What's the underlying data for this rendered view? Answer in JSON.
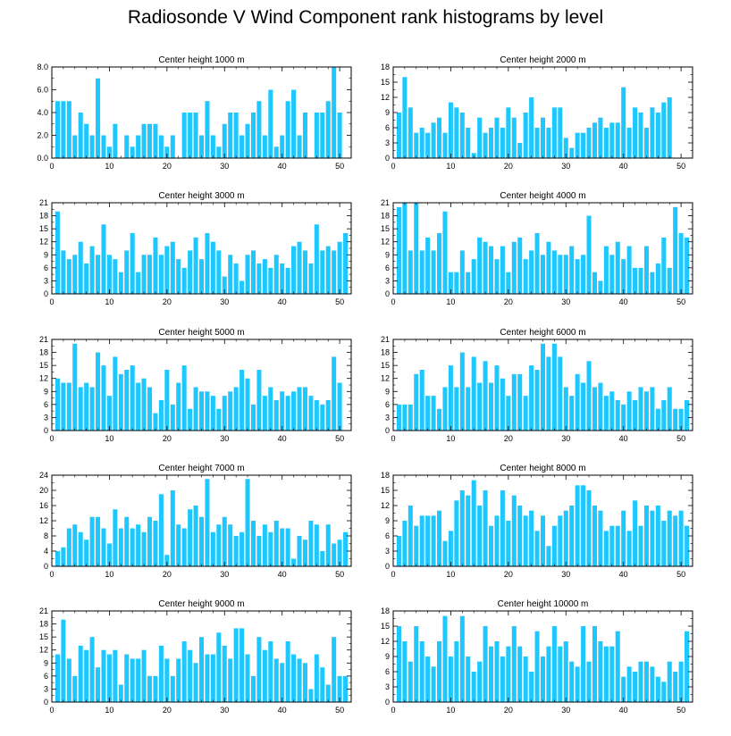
{
  "title": "Radiosonde V Wind Component rank histograms by level",
  "bar_color": "#1ec8ff",
  "chart_data": [
    {
      "type": "bar",
      "title": "Center height 1000 m",
      "ylim": [
        0,
        8
      ],
      "yticks": [
        0,
        2,
        4,
        6,
        8
      ],
      "ytick_labels": [
        "0.0",
        "2.0",
        "4.0",
        "6.0",
        "8.0"
      ],
      "xlim": [
        0,
        52
      ],
      "xticks": [
        0,
        10,
        20,
        30,
        40,
        50
      ],
      "xtick_labels": [
        "0",
        "10",
        "20",
        "30",
        "40",
        "50"
      ],
      "values": [
        5,
        5,
        5,
        2,
        4,
        3,
        2,
        7,
        2,
        1,
        3,
        0,
        2,
        1,
        2,
        3,
        3,
        3,
        2,
        1,
        2,
        0,
        4,
        4,
        4,
        2,
        5,
        2,
        1,
        3,
        4,
        4,
        2,
        3,
        4,
        5,
        2,
        6,
        1,
        2,
        5,
        6,
        2,
        4,
        0,
        4,
        4,
        5,
        8,
        4
      ]
    },
    {
      "type": "bar",
      "title": "Center height 2000 m",
      "ylim": [
        0,
        18
      ],
      "yticks": [
        0,
        3,
        6,
        9,
        12,
        15,
        18
      ],
      "ytick_labels": [
        "0",
        "3",
        "6",
        "9",
        "12",
        "15",
        "18"
      ],
      "xlim": [
        0,
        52
      ],
      "xticks": [
        0,
        10,
        20,
        30,
        40,
        50
      ],
      "xtick_labels": [
        "0",
        "10",
        "20",
        "30",
        "40",
        "50"
      ],
      "values": [
        9,
        16,
        10,
        5,
        6,
        5,
        7,
        8,
        5,
        11,
        10,
        9,
        6,
        1,
        8,
        5,
        6,
        8,
        6,
        10,
        8,
        3,
        9,
        12,
        6,
        8,
        6,
        10,
        10,
        4,
        2,
        5,
        5,
        6,
        7,
        8,
        6,
        7,
        7,
        14,
        6,
        10,
        9,
        6,
        10,
        9,
        11,
        12,
        0,
        0,
        0
      ]
    },
    {
      "type": "bar",
      "title": "Center height 3000 m",
      "ylim": [
        0,
        21
      ],
      "yticks": [
        0,
        3,
        6,
        9,
        12,
        15,
        18,
        21
      ],
      "ytick_labels": [
        "0",
        "3",
        "6",
        "9",
        "12",
        "15",
        "18",
        "21"
      ],
      "xlim": [
        0,
        52
      ],
      "xticks": [
        0,
        10,
        20,
        30,
        40,
        50
      ],
      "xtick_labels": [
        "0",
        "10",
        "20",
        "30",
        "40",
        "50"
      ],
      "values": [
        19,
        10,
        8,
        9,
        12,
        7,
        11,
        9,
        16,
        9,
        8,
        5,
        10,
        14,
        5,
        9,
        9,
        13,
        9,
        11,
        12,
        8,
        6,
        10,
        13,
        8,
        14,
        12,
        10,
        4,
        9,
        7,
        3,
        9,
        10,
        7,
        8,
        6,
        9,
        7,
        6,
        11,
        12,
        10,
        7,
        16,
        10,
        11,
        10,
        12,
        14
      ]
    },
    {
      "type": "bar",
      "title": "Center height 4000 m",
      "ylim": [
        0,
        21
      ],
      "yticks": [
        0,
        3,
        6,
        9,
        12,
        15,
        18,
        21
      ],
      "ytick_labels": [
        "0",
        "3",
        "6",
        "9",
        "12",
        "15",
        "18",
        "21"
      ],
      "xlim": [
        0,
        52
      ],
      "xticks": [
        0,
        10,
        20,
        30,
        40,
        50
      ],
      "xtick_labels": [
        "0",
        "10",
        "20",
        "30",
        "40",
        "50"
      ],
      "values": [
        20,
        21,
        10,
        21,
        10,
        13,
        10,
        14,
        19,
        5,
        5,
        10,
        5,
        8,
        13,
        12,
        11,
        8,
        11,
        5,
        12,
        13,
        8,
        10,
        14,
        9,
        12,
        10,
        9,
        9,
        11,
        8,
        9,
        18,
        5,
        3,
        11,
        9,
        12,
        8,
        11,
        6,
        6,
        11,
        5,
        7,
        13,
        6,
        20,
        14,
        13
      ]
    },
    {
      "type": "bar",
      "title": "Center height 5000 m",
      "ylim": [
        0,
        21
      ],
      "yticks": [
        0,
        3,
        6,
        9,
        12,
        15,
        18,
        21
      ],
      "ytick_labels": [
        "0",
        "3",
        "6",
        "9",
        "12",
        "15",
        "18",
        "21"
      ],
      "xlim": [
        0,
        52
      ],
      "xticks": [
        0,
        10,
        20,
        30,
        40,
        50
      ],
      "xtick_labels": [
        "0",
        "10",
        "20",
        "30",
        "40",
        "50"
      ],
      "values": [
        12,
        11,
        11,
        20,
        10,
        11,
        10,
        18,
        15,
        8,
        17,
        13,
        14,
        15,
        11,
        12,
        10,
        4,
        7,
        14,
        6,
        11,
        15,
        5,
        10,
        9,
        9,
        8,
        5,
        8,
        9,
        10,
        14,
        12,
        6,
        14,
        8,
        10,
        7,
        9,
        8,
        9,
        10,
        10,
        8,
        7,
        6,
        7,
        17,
        11,
        0
      ]
    },
    {
      "type": "bar",
      "title": "Center height 6000 m",
      "ylim": [
        0,
        21
      ],
      "yticks": [
        0,
        3,
        6,
        9,
        12,
        15,
        18,
        21
      ],
      "ytick_labels": [
        "0",
        "3",
        "6",
        "9",
        "12",
        "15",
        "18",
        "21"
      ],
      "xlim": [
        0,
        52
      ],
      "xticks": [
        0,
        10,
        20,
        30,
        40,
        50
      ],
      "xtick_labels": [
        "0",
        "10",
        "20",
        "30",
        "40",
        "50"
      ],
      "values": [
        6,
        6,
        6,
        13,
        14,
        8,
        8,
        5,
        10,
        15,
        10,
        18,
        10,
        17,
        11,
        16,
        11,
        15,
        12,
        8,
        13,
        13,
        8,
        15,
        14,
        20,
        17,
        20,
        17,
        10,
        8,
        13,
        11,
        16,
        10,
        11,
        8,
        9,
        7,
        6,
        9,
        7,
        10,
        9,
        10,
        5,
        7,
        10,
        5,
        5,
        7
      ]
    },
    {
      "type": "bar",
      "title": "Center height 7000 m",
      "ylim": [
        0,
        24
      ],
      "yticks": [
        0,
        4,
        8,
        12,
        16,
        20,
        24
      ],
      "ytick_labels": [
        "0",
        "4",
        "8",
        "12",
        "16",
        "20",
        "24"
      ],
      "xlim": [
        0,
        52
      ],
      "xticks": [
        0,
        10,
        20,
        30,
        40,
        50
      ],
      "xtick_labels": [
        "0",
        "10",
        "20",
        "30",
        "40",
        "50"
      ],
      "values": [
        4,
        5,
        10,
        11,
        9,
        7,
        13,
        13,
        10,
        6,
        15,
        10,
        13,
        10,
        11,
        9,
        13,
        12,
        19,
        3,
        20,
        11,
        10,
        15,
        16,
        13,
        23,
        9,
        11,
        13,
        11,
        8,
        9,
        23,
        12,
        8,
        11,
        9,
        12,
        10,
        10,
        2,
        8,
        7,
        12,
        11,
        4,
        11,
        6,
        7,
        9
      ]
    },
    {
      "type": "bar",
      "title": "Center height 8000 m",
      "ylim": [
        0,
        18
      ],
      "yticks": [
        0,
        3,
        6,
        9,
        12,
        15,
        18
      ],
      "ytick_labels": [
        "0",
        "3",
        "6",
        "9",
        "12",
        "15",
        "18"
      ],
      "xlim": [
        0,
        52
      ],
      "xticks": [
        0,
        10,
        20,
        30,
        40,
        50
      ],
      "xtick_labels": [
        "0",
        "10",
        "20",
        "30",
        "40",
        "50"
      ],
      "values": [
        6,
        9,
        12,
        8,
        10,
        10,
        10,
        11,
        5,
        7,
        13,
        15,
        14,
        17,
        12,
        15,
        8,
        10,
        15,
        9,
        14,
        12,
        10,
        11,
        7,
        10,
        4,
        8,
        10,
        11,
        12,
        16,
        16,
        15,
        12,
        11,
        7,
        8,
        8,
        11,
        7,
        13,
        8,
        12,
        11,
        12,
        9,
        11,
        10,
        11,
        8
      ]
    },
    {
      "type": "bar",
      "title": "Center height 9000 m",
      "ylim": [
        0,
        21
      ],
      "yticks": [
        0,
        3,
        6,
        9,
        12,
        15,
        18,
        21
      ],
      "ytick_labels": [
        "0",
        "3",
        "6",
        "9",
        "12",
        "15",
        "18",
        "21"
      ],
      "xlim": [
        0,
        52
      ],
      "xticks": [
        0,
        10,
        20,
        30,
        40,
        50
      ],
      "xtick_labels": [
        "0",
        "10",
        "20",
        "30",
        "40",
        "50"
      ],
      "values": [
        11,
        19,
        10,
        6,
        13,
        12,
        15,
        8,
        12,
        11,
        12,
        4,
        11,
        10,
        10,
        12,
        6,
        6,
        13,
        10,
        6,
        10,
        14,
        12,
        9,
        15,
        11,
        11,
        16,
        13,
        10,
        17,
        17,
        11,
        6,
        15,
        12,
        14,
        10,
        9,
        14,
        11,
        10,
        9,
        3,
        11,
        8,
        4,
        15,
        6,
        6
      ]
    },
    {
      "type": "bar",
      "title": "Center height 10000 m",
      "ylim": [
        0,
        18
      ],
      "yticks": [
        0,
        3,
        6,
        9,
        12,
        15,
        18
      ],
      "ytick_labels": [
        "0",
        "3",
        "6",
        "9",
        "12",
        "15",
        "18"
      ],
      "xlim": [
        0,
        52
      ],
      "xticks": [
        0,
        10,
        20,
        30,
        40,
        50
      ],
      "xtick_labels": [
        "0",
        "10",
        "20",
        "30",
        "40",
        "50"
      ],
      "values": [
        15,
        12,
        8,
        15,
        12,
        9,
        7,
        12,
        17,
        9,
        12,
        17,
        9,
        6,
        8,
        15,
        11,
        12,
        9,
        11,
        15,
        11,
        9,
        6,
        14,
        9,
        11,
        15,
        11,
        12,
        8,
        7,
        15,
        8,
        15,
        12,
        11,
        11,
        14,
        5,
        7,
        6,
        8,
        8,
        7,
        5,
        4,
        8,
        6,
        8,
        14
      ]
    }
  ]
}
